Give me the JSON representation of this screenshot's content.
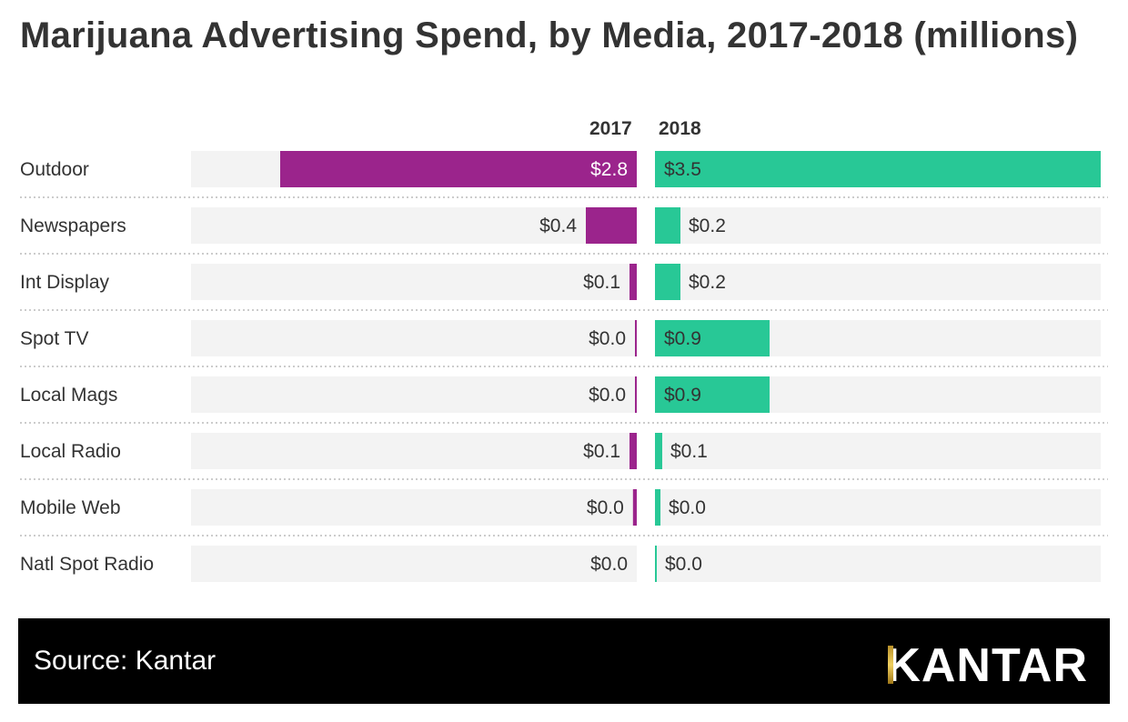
{
  "title": "Marijuana Advertising Spend, by Media, 2017-2018 (millions)",
  "footer": {
    "source": "Source: Kantar",
    "logo": "KANTAR"
  },
  "colors": {
    "2017": "#9b248c",
    "2018": "#28c896",
    "track": "#f3f3f3",
    "footer_bg": "#000000"
  },
  "chart_data": {
    "type": "bar",
    "orientation": "horizontal",
    "title": "Marijuana Advertising Spend, by Media, 2017-2018 (millions)",
    "categories": [
      "Outdoor",
      "Newspapers",
      "Int Display",
      "Spot TV",
      "Local Mags",
      "Local Radio",
      "Mobile Web",
      "Natl Spot Radio"
    ],
    "xlim": [
      0,
      3.5
    ],
    "grid": false,
    "series": [
      {
        "name": "2017",
        "values": [
          2.8,
          0.4,
          0.057,
          0.014,
          0.014,
          0.057,
          0.03,
          0.0
        ],
        "labels": [
          "$2.8",
          "$0.4",
          "$0.1",
          "$0.0",
          "$0.0",
          "$0.1",
          "$0.0",
          "$0.0"
        ]
      },
      {
        "name": "2018",
        "values": [
          3.5,
          0.2,
          0.2,
          0.9,
          0.9,
          0.057,
          0.043,
          0.01
        ],
        "labels": [
          "$3.5",
          "$0.2",
          "$0.2",
          "$0.9",
          "$0.9",
          "$0.1",
          "$0.0",
          "$0.0"
        ]
      }
    ]
  }
}
